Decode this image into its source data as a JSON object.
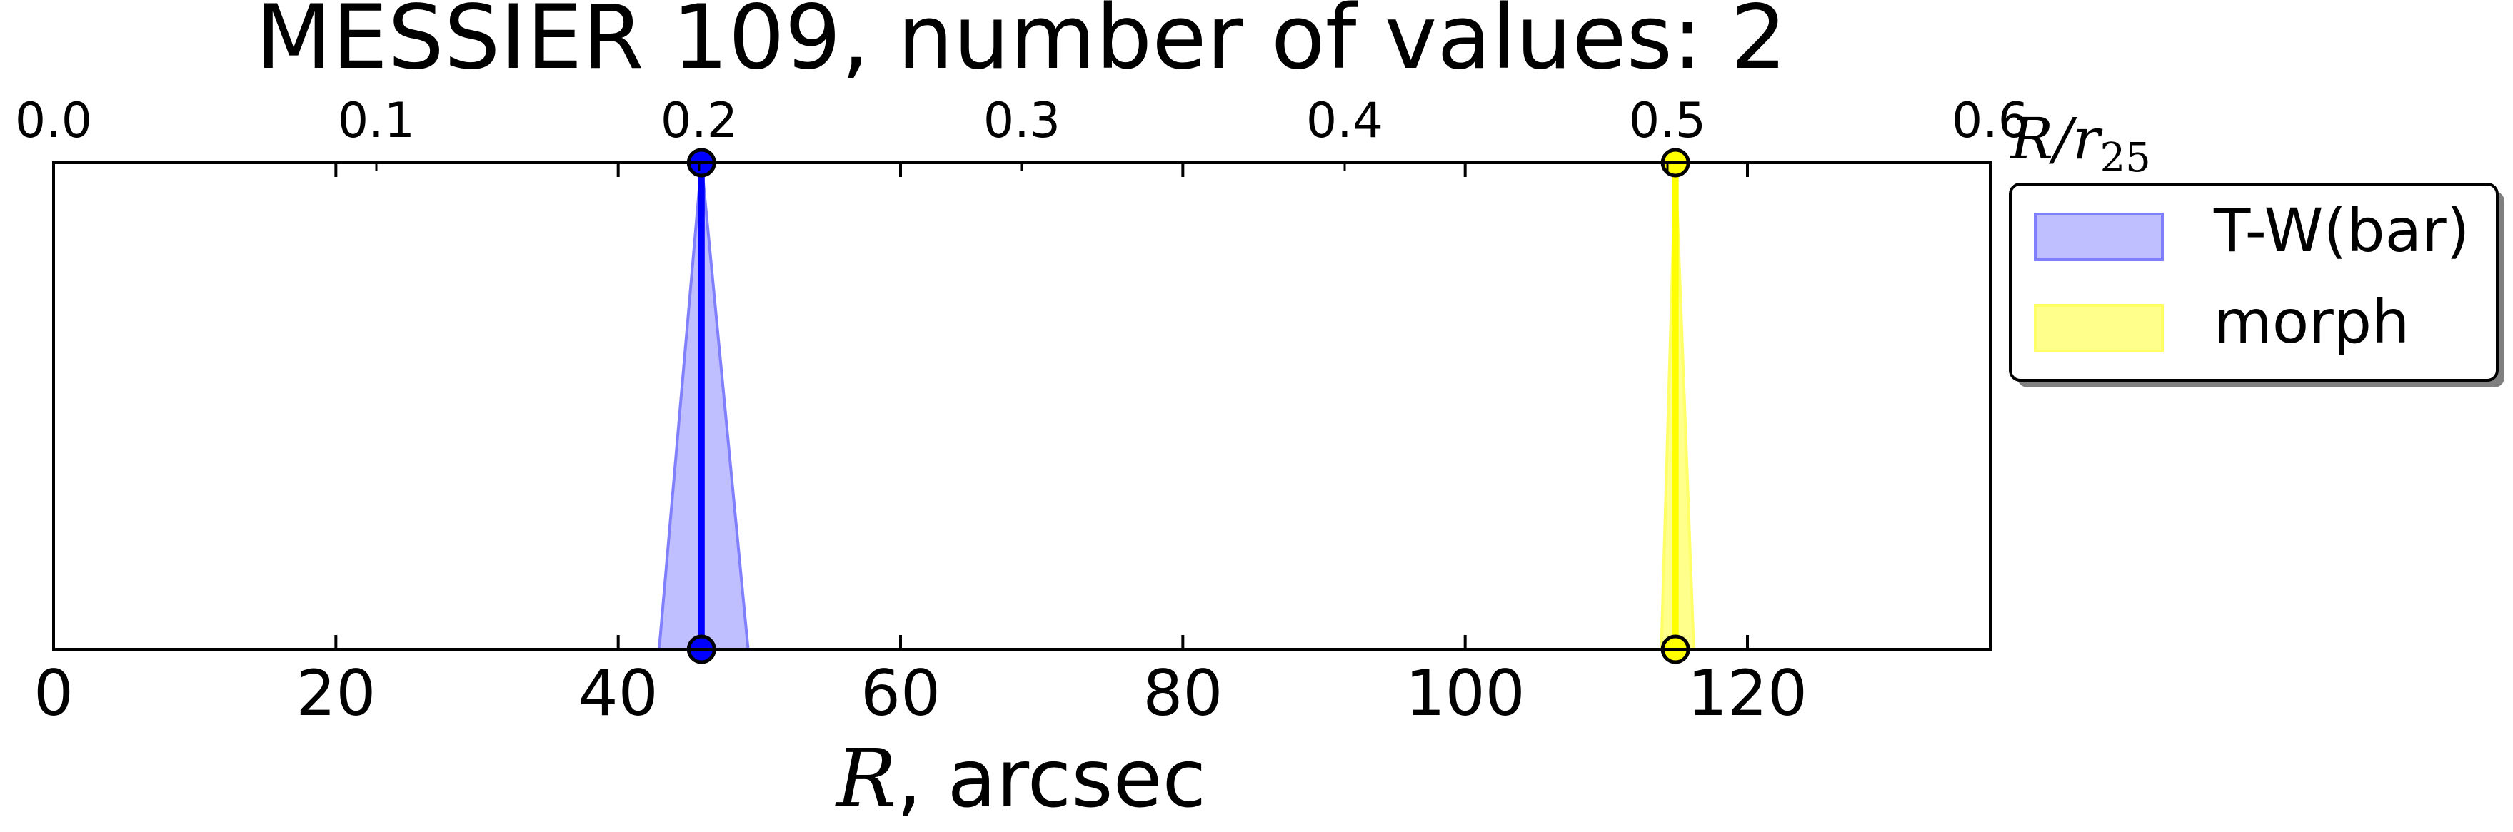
{
  "chart_data": {
    "type": "area",
    "title": "MESSIER 109, number of values: 2",
    "xlabel_math": "R",
    "xlabel_rest": ", arcsec",
    "top_axis_label_base": "R/r",
    "top_axis_label_sub": "25",
    "xlim": [
      0,
      137.2
    ],
    "xticks": [
      0,
      20,
      40,
      60,
      80,
      100,
      120
    ],
    "top_xlim": [
      0,
      0.6
    ],
    "top_xticks": [
      "0.0",
      "0.1",
      "0.2",
      "0.3",
      "0.4",
      "0.5",
      "0.6"
    ],
    "legend_position": "right, outside top",
    "series": [
      {
        "name": "T-W(bar)",
        "center": 45.9,
        "bottom_range": [
          42.9,
          49.2
        ],
        "color": "#0000ff",
        "fill_color": "#8080ff",
        "fill_opacity": 0.5
      },
      {
        "name": "morph",
        "center": 114.9,
        "bottom_range": [
          113.9,
          116.2
        ],
        "color": "#ffff00",
        "fill_color": "#ffff66",
        "fill_opacity": 0.75
      }
    ]
  }
}
